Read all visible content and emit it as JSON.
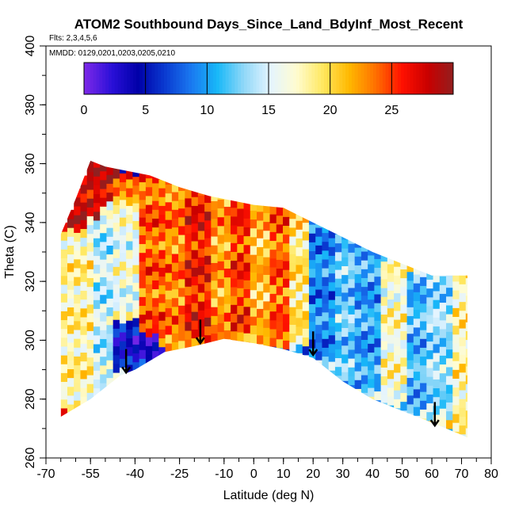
{
  "chart_data": {
    "type": "heatmap",
    "title": "ATOM2 Southbound Days_Since_Land_BdyInf_Most_Recent",
    "subtitle": "Flts: 2,3,4,5,6",
    "annotation": "MMDD: 0129,0201,0203,0205,0210",
    "xlabel": "Latitude (deg N)",
    "ylabel": "Theta (C)",
    "xlim": [
      -70,
      80
    ],
    "ylim": [
      260,
      400
    ],
    "x_ticks": [
      -70,
      -55,
      -40,
      -25,
      -10,
      0,
      10,
      20,
      30,
      40,
      50,
      60,
      70,
      80
    ],
    "x_tick_labels": [
      "-70",
      "-55",
      "-40",
      "-25",
      "-10",
      "0",
      "10",
      "20",
      "30",
      "40",
      "50",
      "60",
      "70",
      "80"
    ],
    "y_ticks": [
      260,
      280,
      300,
      320,
      340,
      360,
      380,
      400
    ],
    "y_tick_labels": [
      "260",
      "280",
      "300",
      "320",
      "340",
      "360",
      "380",
      "400"
    ],
    "colorbar": {
      "range": [
        0,
        30
      ],
      "ticks": [
        0,
        5,
        10,
        15,
        20,
        25
      ],
      "tick_labels": [
        "0",
        "5",
        "10",
        "15",
        "20",
        "25"
      ],
      "colors": [
        "#7a28e8",
        "#2a10d8",
        "#0000a8",
        "#0a3ad0",
        "#1a78f0",
        "#18b8f8",
        "#90d8f8",
        "#e4f4ff",
        "#fffcd0",
        "#ffe860",
        "#ffb800",
        "#ff7000",
        "#ff1000",
        "#c80000",
        "#902020"
      ]
    },
    "coverage": {
      "bottom_boundary": [
        [
          -65,
          274
        ],
        [
          -55,
          280
        ],
        [
          -45,
          288
        ],
        [
          -40,
          290
        ],
        [
          -30,
          296
        ],
        [
          -20,
          298
        ],
        [
          -10,
          300.5
        ],
        [
          0,
          299
        ],
        [
          10,
          297
        ],
        [
          20,
          294
        ],
        [
          30,
          286
        ],
        [
          40,
          280
        ],
        [
          50,
          276
        ],
        [
          60,
          272
        ],
        [
          72,
          267
        ]
      ],
      "top_boundary": [
        [
          -65,
          336
        ],
        [
          -60,
          348
        ],
        [
          -55,
          361
        ],
        [
          -50,
          359
        ],
        [
          -45,
          358
        ],
        [
          -35,
          356
        ],
        [
          -25,
          352
        ],
        [
          -15,
          349
        ],
        [
          -10,
          348
        ],
        [
          0,
          346
        ],
        [
          10,
          345
        ],
        [
          20,
          340
        ],
        [
          30,
          335
        ],
        [
          40,
          330
        ],
        [
          50,
          326
        ],
        [
          60,
          322
        ],
        [
          72,
          322
        ]
      ]
    },
    "arrows": [
      {
        "lat": -43,
        "theta": 293
      },
      {
        "lat": -18,
        "theta": 303
      },
      {
        "lat": 20,
        "theta": 299
      },
      {
        "lat": 61,
        "theta": 275
      }
    ],
    "cell_values": [
      {
        "lat": -62,
        "theta_min": 336,
        "theta_max": 361,
        "days": 28
      },
      {
        "lat": -58,
        "theta_min": 275,
        "theta_max": 336,
        "days": 18
      },
      {
        "lat": -52,
        "theta_min": 282,
        "theta_max": 340,
        "days": 14
      },
      {
        "lat": -45,
        "theta_min": 288,
        "theta_max": 305,
        "days": 5
      },
      {
        "lat": -45,
        "theta_min": 305,
        "theta_max": 345,
        "days": 16
      },
      {
        "lat": -38,
        "theta_min": 291,
        "theta_max": 300,
        "days": 4
      },
      {
        "lat": -35,
        "theta_min": 300,
        "theta_max": 355,
        "days": 24
      },
      {
        "lat": -28,
        "theta_min": 296,
        "theta_max": 352,
        "days": 23
      },
      {
        "lat": -20,
        "theta_min": 298,
        "theta_max": 350,
        "days": 26
      },
      {
        "lat": -12,
        "theta_min": 300,
        "theta_max": 348,
        "days": 22
      },
      {
        "lat": -5,
        "theta_min": 300,
        "theta_max": 347,
        "days": 25
      },
      {
        "lat": 2,
        "theta_min": 299,
        "theta_max": 346,
        "days": 21
      },
      {
        "lat": 8,
        "theta_min": 297,
        "theta_max": 345,
        "days": 24
      },
      {
        "lat": 14,
        "theta_min": 296,
        "theta_max": 343,
        "days": 19
      },
      {
        "lat": 22,
        "theta_min": 293,
        "theta_max": 340,
        "days": 9
      },
      {
        "lat": 30,
        "theta_min": 286,
        "theta_max": 335,
        "days": 12
      },
      {
        "lat": 38,
        "theta_min": 281,
        "theta_max": 330,
        "days": 10
      },
      {
        "lat": 46,
        "theta_min": 277,
        "theta_max": 326,
        "days": 17
      },
      {
        "lat": 54,
        "theta_min": 274,
        "theta_max": 322,
        "days": 11
      },
      {
        "lat": 62,
        "theta_min": 271,
        "theta_max": 322,
        "days": 13
      },
      {
        "lat": 69,
        "theta_min": 268,
        "theta_max": 322,
        "days": 18
      }
    ]
  }
}
